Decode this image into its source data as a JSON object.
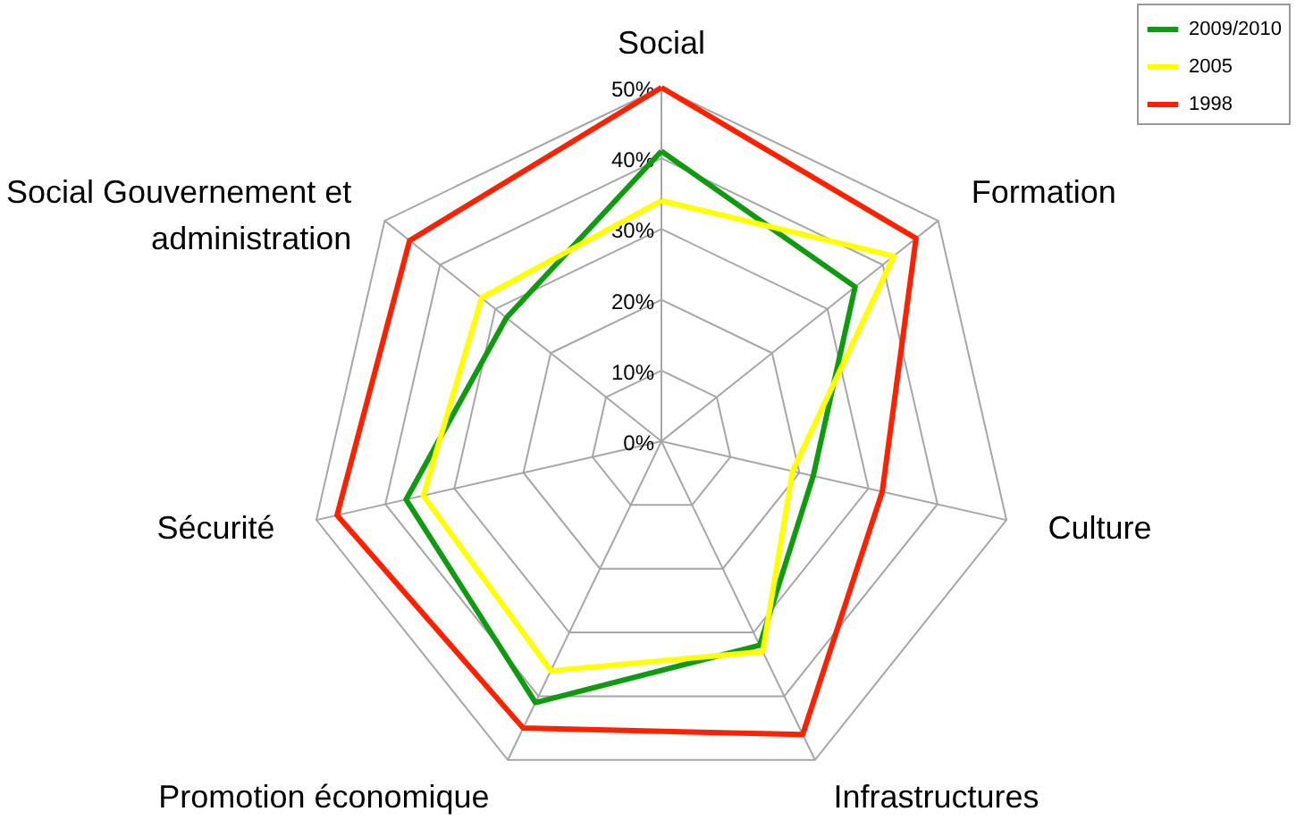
{
  "chart_data": {
    "type": "radar",
    "categories": [
      "Social",
      "Formation",
      "Culture",
      "Infrastructures",
      "Promotion économique",
      "Sécurité",
      "Social Gouvernement et\nadministration"
    ],
    "series": [
      {
        "name": "2009/2010",
        "color": "#109a10",
        "values": [
          41,
          35,
          22,
          32,
          41,
          37,
          28
        ]
      },
      {
        "name": "2005",
        "color": "#ffff00",
        "values": [
          34,
          42,
          19,
          33,
          36,
          34.5,
          32.5
        ]
      },
      {
        "name": "1998",
        "color": "#ff2000",
        "values": [
          50,
          46,
          32,
          46,
          45,
          47,
          45.5
        ]
      }
    ],
    "ylim": [
      0,
      50
    ],
    "yticks": [
      {
        "value": 0,
        "label": "0%"
      },
      {
        "value": 10,
        "label": "10%"
      },
      {
        "value": 20,
        "label": "20%"
      },
      {
        "value": 30,
        "label": "30%"
      },
      {
        "value": 40,
        "label": "40%"
      },
      {
        "value": 50,
        "label": "50%"
      }
    ],
    "grid": true,
    "legend": "top right"
  }
}
